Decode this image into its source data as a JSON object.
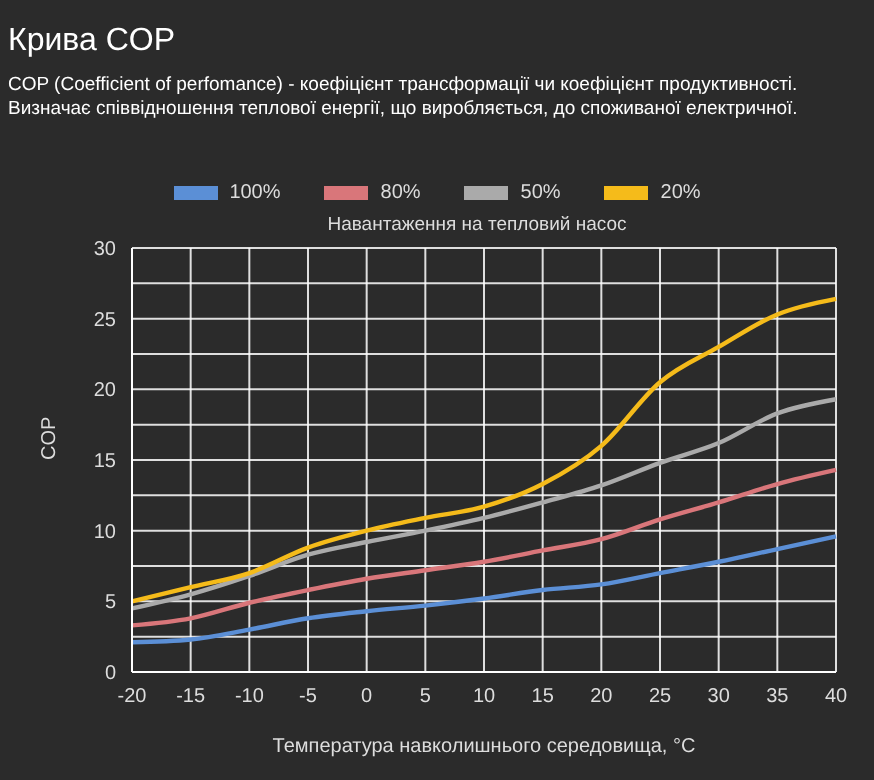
{
  "chart_data": {
    "type": "line",
    "title": "Крива COP",
    "subtitle": "COP (Coefficient of perfomance) - коефіцієнт трансформації чи коефіцієнт продуктивності. Визначає співвідношення теплової енергії, що виробляється, до споживаної електричної.",
    "legend_title": "Навантаження на тепловий насос",
    "xlabel": "Температура навколишнього середовища, °C",
    "ylabel": "COP",
    "categories": [
      "-20",
      "-15",
      "-10",
      "-5",
      "0",
      "5",
      "10",
      "15",
      "20",
      "25",
      "30",
      "35",
      "40"
    ],
    "series": [
      {
        "name": "100%",
        "color": "#5b8fd6",
        "values": [
          2.1,
          2.3,
          3,
          3.8,
          4.3,
          4.7,
          5.2,
          5.8,
          6.2,
          7,
          7.8,
          8.7,
          9.6
        ]
      },
      {
        "name": "80%",
        "color": "#d9767a",
        "values": [
          3.3,
          3.8,
          4.9,
          5.8,
          6.6,
          7.2,
          7.8,
          8.6,
          9.4,
          10.8,
          12,
          13.3,
          14.3
        ]
      },
      {
        "name": "50%",
        "color": "#aaaaaa",
        "values": [
          4.5,
          5.5,
          6.8,
          8.3,
          9.2,
          10,
          10.9,
          12,
          13.2,
          14.8,
          16.2,
          18.3,
          19.3
        ]
      },
      {
        "name": "20%",
        "color": "#f5bb1a",
        "values": [
          5,
          6,
          7,
          8.8,
          10,
          10.9,
          11.7,
          13.3,
          16,
          20.5,
          23,
          25.3,
          26.4
        ]
      }
    ],
    "ylim": [
      0,
      30
    ],
    "yticks": [
      0,
      {
        "value": 2.5,
        "label": null
      },
      5,
      {
        "value": 7.5,
        "label": null
      },
      10,
      {
        "value": 12.5,
        "label": null
      },
      15,
      {
        "value": 17.5,
        "label": null
      },
      20,
      {
        "value": 22.5,
        "label": null
      },
      25,
      {
        "value": 27.5,
        "label": null
      },
      30
    ],
    "grid": true,
    "legend": "top",
    "marker": "none",
    "line_style": "solid"
  }
}
